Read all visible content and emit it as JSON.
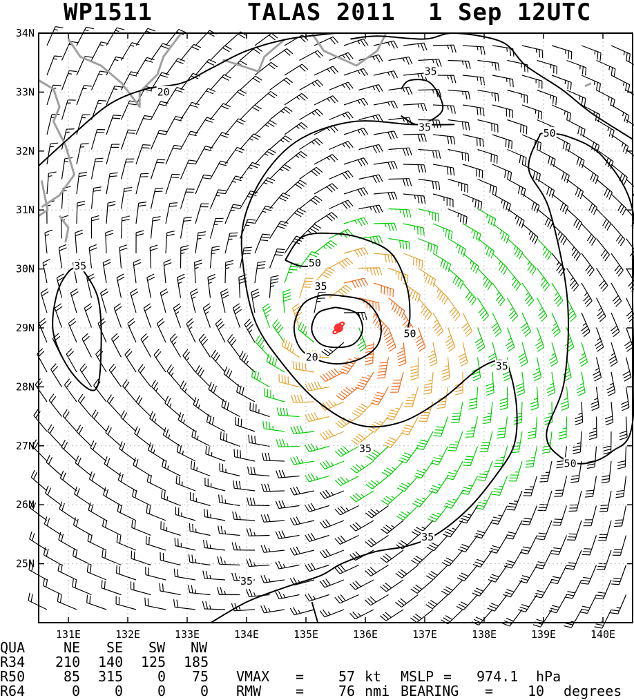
{
  "title": {
    "storm_id": "WP1511",
    "storm_name_year": "TALAS 2011",
    "datetime": "1 Sep 12UTC"
  },
  "map": {
    "lon_range": [
      130.5,
      140.5
    ],
    "lat_range": [
      24.0,
      34.0
    ],
    "lon_ticks": [
      "131E",
      "132E",
      "133E",
      "134E",
      "135E",
      "136E",
      "137E",
      "138E",
      "139E",
      "140E"
    ],
    "lat_ticks": [
      "25N",
      "26N",
      "27N",
      "28N",
      "29N",
      "30N",
      "31N",
      "32N",
      "33N",
      "34N"
    ],
    "storm_center": {
      "lon": 135.55,
      "lat": 29.0
    },
    "contour_labels": [
      {
        "text": "20",
        "lon": 132.6,
        "lat": 33.0
      },
      {
        "text": "35",
        "lon": 137.1,
        "lat": 33.35
      },
      {
        "text": "35",
        "lon": 137.0,
        "lat": 32.4
      },
      {
        "text": "50",
        "lon": 139.1,
        "lat": 32.3
      },
      {
        "text": "50",
        "lon": 135.15,
        "lat": 30.1
      },
      {
        "text": "35",
        "lon": 135.25,
        "lat": 29.7
      },
      {
        "text": "50",
        "lon": 136.75,
        "lat": 28.9
      },
      {
        "text": "20",
        "lon": 135.1,
        "lat": 28.5
      },
      {
        "text": "35",
        "lon": 138.3,
        "lat": 28.35
      },
      {
        "text": "35",
        "lon": 131.2,
        "lat": 30.05
      },
      {
        "text": "35",
        "lon": 136.0,
        "lat": 26.95
      },
      {
        "text": "50",
        "lon": 139.45,
        "lat": 26.7
      },
      {
        "text": "35",
        "lon": 137.05,
        "lat": 25.45
      },
      {
        "text": "35",
        "lon": 134.0,
        "lat": 24.7
      }
    ],
    "colors": {
      "below34": "#000000",
      "r34": "#00cc00",
      "r50": "#e6a02a",
      "r64": "#ee6a1a",
      "contour": "#000000",
      "coast": "#a0a0a0",
      "center": "#ff3030",
      "grid": "#b0b0b0"
    }
  },
  "table": {
    "header": [
      "QUA",
      "NE",
      "SE",
      "SW",
      "NW"
    ],
    "rows": [
      {
        "label": "R34",
        "values": [
          "210",
          "140",
          "125",
          "185"
        ]
      },
      {
        "label": "R50",
        "values": [
          "85",
          "315",
          "0",
          "75"
        ]
      },
      {
        "label": "R64",
        "values": [
          "0",
          "0",
          "0",
          "0"
        ]
      }
    ],
    "vmax_label": "VMAX",
    "vmax_value": "57",
    "vmax_unit": "kt",
    "mslp_label": "MSLP",
    "mslp_value": "974.1",
    "mslp_unit": "hPa",
    "rmw_label": "RMW",
    "rmw_value": "76",
    "rmw_unit": "nmi",
    "bearing_label": "BEARING",
    "bearing_value": "10",
    "bearing_unit": "degrees"
  }
}
